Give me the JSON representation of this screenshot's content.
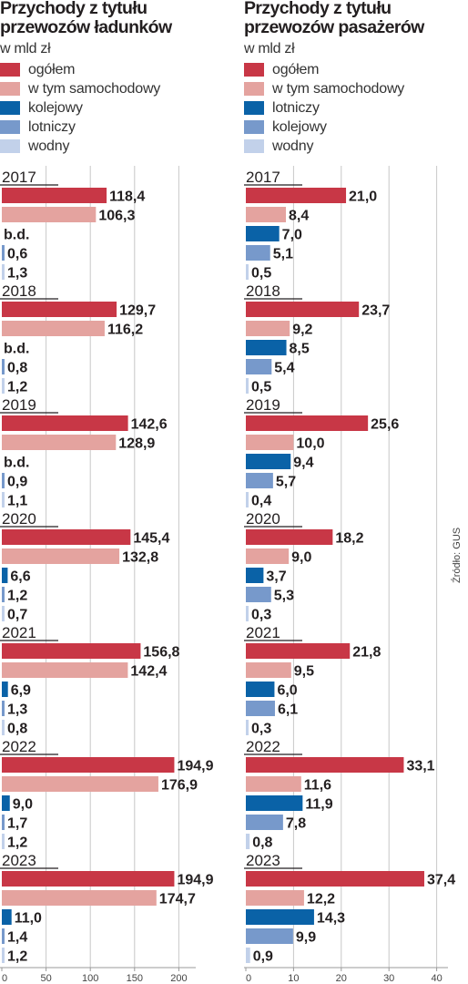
{
  "source": "Źródło: GUS",
  "colors": {
    "ogolem": "#c83746",
    "samochodowy": "#e4a39f",
    "dark_blue": "#0a62a7",
    "light_blue": "#7799cb",
    "pale_blue": "#c2d1ea",
    "axis": "#999999",
    "grid": "#c8c8c8"
  },
  "chart_data": [
    {
      "type": "bar",
      "title": "Przychody z tytułu przewozów ładunków",
      "subtitle": "w mld zł",
      "legend": [
        {
          "name": "ogółem",
          "color": "#c83746"
        },
        {
          "name": "w tym samochodowy",
          "color": "#e4a39f"
        },
        {
          "name": "kolejowy",
          "color": "#0a62a7"
        },
        {
          "name": "lotniczy",
          "color": "#7799cb"
        },
        {
          "name": "wodny",
          "color": "#c2d1ea"
        }
      ],
      "categories": [
        "2017",
        "2018",
        "2019",
        "2020",
        "2021",
        "2022",
        "2023"
      ],
      "series": [
        {
          "name": "ogółem",
          "values": [
            118.4,
            129.7,
            142.6,
            145.4,
            156.8,
            194.9,
            194.9
          ],
          "labels": [
            "118,4",
            "129,7",
            "142,6",
            "145,4",
            "156,8",
            "194,9",
            "194,9"
          ]
        },
        {
          "name": "w tym samochodowy",
          "values": [
            106.3,
            116.2,
            128.9,
            132.8,
            142.4,
            176.9,
            174.7
          ],
          "labels": [
            "106,3",
            "116,2",
            "128,9",
            "132,8",
            "142,4",
            "176,9",
            "174,7"
          ]
        },
        {
          "name": "kolejowy",
          "values": [
            null,
            null,
            null,
            6.6,
            6.9,
            9.0,
            11.0
          ],
          "labels": [
            "b.d.",
            "b.d.",
            "b.d.",
            "6,6",
            "6,9",
            "9,0",
            "11,0"
          ]
        },
        {
          "name": "lotniczy",
          "values": [
            0.6,
            0.8,
            0.9,
            1.2,
            1.3,
            1.7,
            1.4
          ],
          "labels": [
            "0,6",
            "0,8",
            "0,9",
            "1,2",
            "1,3",
            "1,7",
            "1,4"
          ]
        },
        {
          "name": "wodny",
          "values": [
            1.3,
            1.2,
            1.1,
            0.7,
            0.8,
            1.2,
            1.2
          ],
          "labels": [
            "1,3",
            "1,2",
            "1,1",
            "0,7",
            "0,8",
            "1,2",
            "1,2"
          ]
        }
      ],
      "xlim": [
        0,
        250
      ],
      "ticks": [
        0,
        50,
        100,
        150,
        200
      ],
      "grid": true
    },
    {
      "type": "bar",
      "title": "Przychody z tytułu przewozów pasażerów",
      "subtitle": "w mld zł",
      "legend": [
        {
          "name": "ogółem",
          "color": "#c83746"
        },
        {
          "name": "w tym samochodowy",
          "color": "#e4a39f"
        },
        {
          "name": "lotniczy",
          "color": "#0a62a7"
        },
        {
          "name": "kolejowy",
          "color": "#7799cb"
        },
        {
          "name": "wodny",
          "color": "#c2d1ea"
        }
      ],
      "categories": [
        "2017",
        "2018",
        "2019",
        "2020",
        "2021",
        "2022",
        "2023"
      ],
      "series": [
        {
          "name": "ogółem",
          "values": [
            21.0,
            23.7,
            25.6,
            18.2,
            21.8,
            33.1,
            37.4
          ],
          "labels": [
            "21,0",
            "23,7",
            "25,6",
            "18,2",
            "21,8",
            "33,1",
            "37,4"
          ]
        },
        {
          "name": "w tym samochodowy",
          "values": [
            8.4,
            9.2,
            10.0,
            9.0,
            9.5,
            11.6,
            12.2
          ],
          "labels": [
            "8,4",
            "9,2",
            "10,0",
            "9,0",
            "9,5",
            "11,6",
            "12,2"
          ]
        },
        {
          "name": "lotniczy",
          "values": [
            7.0,
            8.5,
            9.4,
            3.7,
            6.0,
            11.9,
            14.3
          ],
          "labels": [
            "7,0",
            "8,5",
            "9,4",
            "3,7",
            "6,0",
            "11,9",
            "14,3"
          ]
        },
        {
          "name": "kolejowy",
          "values": [
            5.1,
            5.4,
            5.7,
            5.3,
            6.1,
            7.8,
            9.9
          ],
          "labels": [
            "5,1",
            "5,4",
            "5,7",
            "5,3",
            "6,1",
            "7,8",
            "9,9"
          ]
        },
        {
          "name": "wodny",
          "values": [
            0.5,
            0.5,
            0.4,
            0.3,
            0.3,
            0.8,
            0.9
          ],
          "labels": [
            "0,5",
            "0,5",
            "0,4",
            "0,3",
            "0,3",
            "0,8",
            "0,9"
          ]
        }
      ],
      "xlim": [
        0,
        45
      ],
      "ticks": [
        0,
        10,
        20,
        30,
        40
      ],
      "grid": true
    }
  ]
}
